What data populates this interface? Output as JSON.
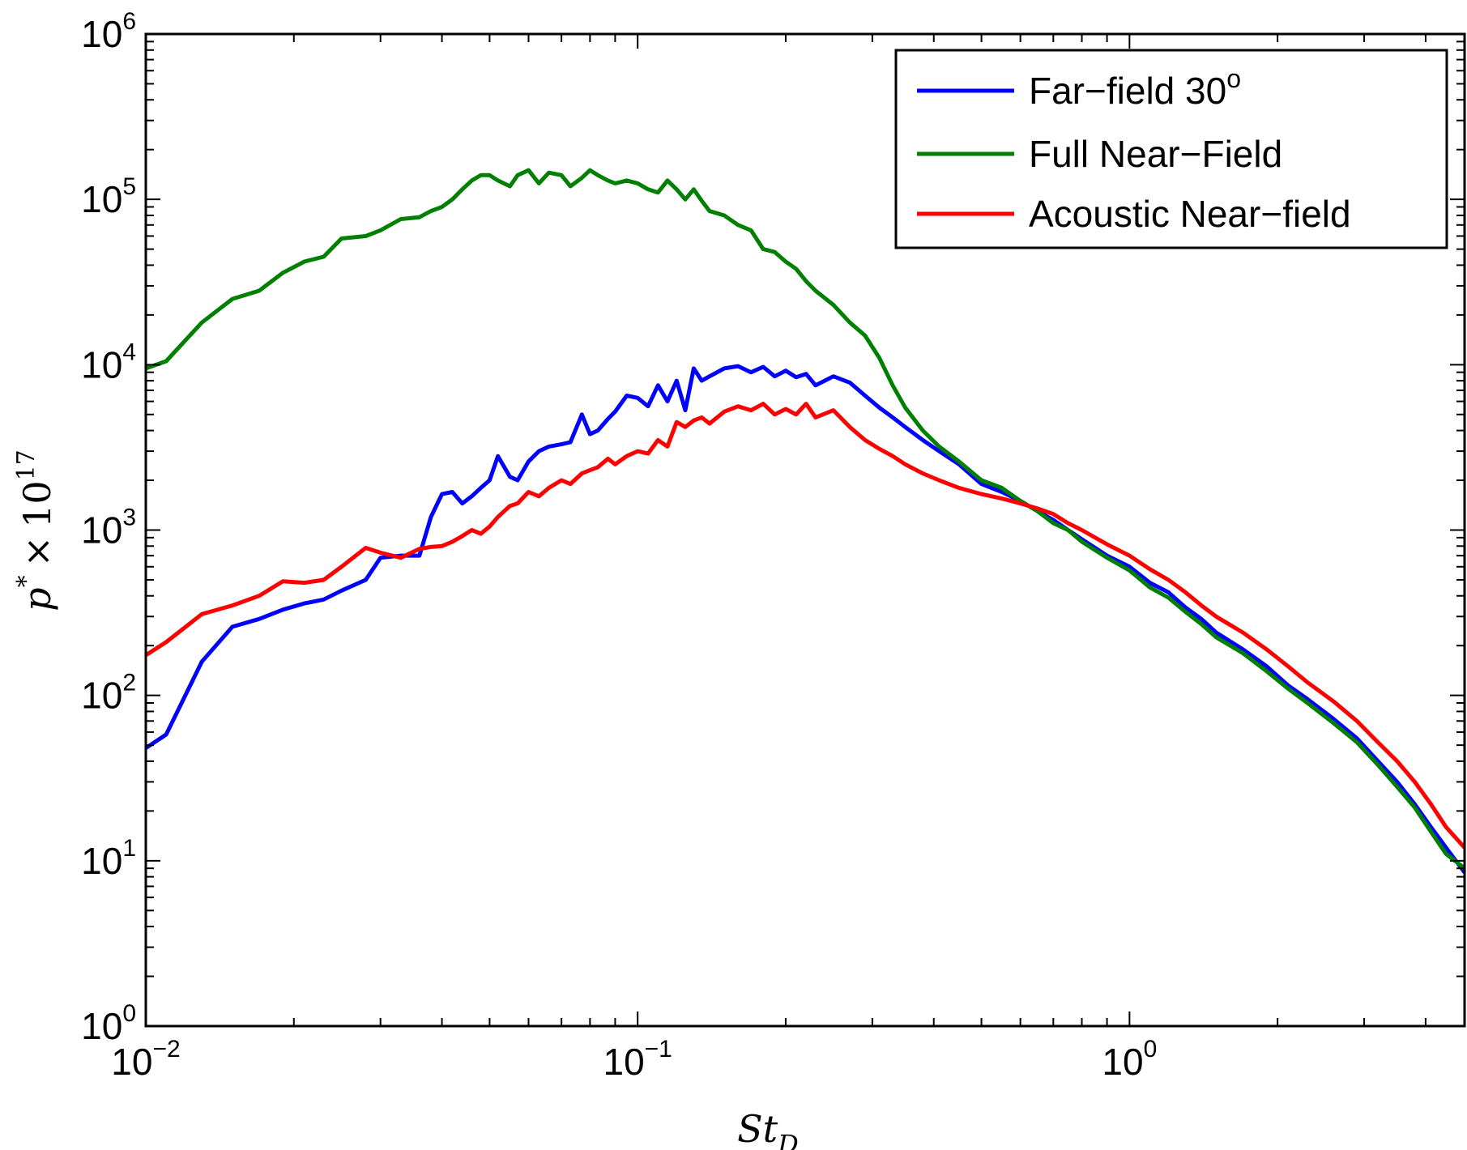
{
  "chart_data": {
    "type": "line",
    "title": "",
    "xscale": "log",
    "yscale": "log",
    "xlim": [
      0.01,
      4.8
    ],
    "ylim": [
      1,
      1000000
    ],
    "xticks": [
      {
        "base": "10",
        "exp": "−2",
        "value": 0.01
      },
      {
        "base": "10",
        "exp": "−1",
        "value": 0.1
      },
      {
        "base": "10",
        "exp": "0",
        "value": 1
      }
    ],
    "yticks": [
      {
        "base": "10",
        "exp": "0",
        "value": 1
      },
      {
        "base": "10",
        "exp": "1",
        "value": 10
      },
      {
        "base": "10",
        "exp": "2",
        "value": 100
      },
      {
        "base": "10",
        "exp": "3",
        "value": 1000
      },
      {
        "base": "10",
        "exp": "4",
        "value": 10000
      },
      {
        "base": "10",
        "exp": "5",
        "value": 100000
      },
      {
        "base": "10",
        "exp": "6",
        "value": 1000000
      }
    ],
    "xlabel": {
      "main": "St",
      "sub": "D"
    },
    "ylabel": {
      "main": "p",
      "sup1": "*",
      "times": "×",
      "base": "10",
      "sup2": "17"
    },
    "grid": false,
    "legend_position": "top-right",
    "series": [
      {
        "name": "Far−field 30",
        "name_sup": "o",
        "color": "#0000ff",
        "x": [
          0.01,
          0.011,
          0.013,
          0.015,
          0.017,
          0.019,
          0.021,
          0.023,
          0.025,
          0.028,
          0.03,
          0.033,
          0.036,
          0.038,
          0.04,
          0.042,
          0.044,
          0.046,
          0.048,
          0.05,
          0.052,
          0.055,
          0.057,
          0.06,
          0.063,
          0.066,
          0.07,
          0.073,
          0.077,
          0.08,
          0.083,
          0.087,
          0.09,
          0.095,
          0.1,
          0.105,
          0.11,
          0.115,
          0.12,
          0.125,
          0.13,
          0.135,
          0.14,
          0.15,
          0.16,
          0.17,
          0.18,
          0.19,
          0.2,
          0.21,
          0.22,
          0.23,
          0.25,
          0.27,
          0.29,
          0.31,
          0.33,
          0.35,
          0.38,
          0.41,
          0.45,
          0.5,
          0.55,
          0.6,
          0.65,
          0.7,
          0.75,
          0.8,
          0.9,
          1.0,
          1.1,
          1.2,
          1.3,
          1.4,
          1.5,
          1.7,
          1.9,
          2.1,
          2.3,
          2.6,
          2.9,
          3.2,
          3.5,
          3.8,
          4.1,
          4.4,
          4.8
        ],
        "values": [
          48,
          58,
          160,
          260,
          290,
          330,
          360,
          380,
          430,
          500,
          680,
          700,
          700,
          1200,
          1650,
          1700,
          1450,
          1600,
          1800,
          2000,
          2800,
          2100,
          2000,
          2600,
          3000,
          3200,
          3300,
          3400,
          5000,
          3800,
          4000,
          4700,
          5200,
          6500,
          6300,
          5600,
          7500,
          6000,
          8000,
          5300,
          9500,
          8000,
          8500,
          9500,
          9800,
          9000,
          9700,
          8500,
          9200,
          8400,
          8800,
          7500,
          8500,
          7800,
          6500,
          5500,
          4800,
          4200,
          3500,
          3000,
          2500,
          1900,
          1700,
          1500,
          1300,
          1150,
          1000,
          880,
          700,
          600,
          480,
          420,
          340,
          290,
          240,
          190,
          150,
          115,
          95,
          72,
          55,
          40,
          30,
          22,
          16,
          12,
          8.5
        ]
      },
      {
        "name": "Full Near−Field",
        "color": "#008000",
        "x": [
          0.01,
          0.011,
          0.013,
          0.015,
          0.017,
          0.019,
          0.021,
          0.023,
          0.025,
          0.028,
          0.03,
          0.033,
          0.036,
          0.038,
          0.04,
          0.042,
          0.044,
          0.046,
          0.048,
          0.05,
          0.052,
          0.055,
          0.057,
          0.06,
          0.063,
          0.066,
          0.07,
          0.073,
          0.077,
          0.08,
          0.083,
          0.087,
          0.09,
          0.095,
          0.1,
          0.105,
          0.11,
          0.115,
          0.12,
          0.125,
          0.13,
          0.135,
          0.14,
          0.15,
          0.16,
          0.17,
          0.18,
          0.19,
          0.2,
          0.21,
          0.22,
          0.23,
          0.25,
          0.27,
          0.29,
          0.31,
          0.33,
          0.35,
          0.38,
          0.41,
          0.45,
          0.5,
          0.55,
          0.6,
          0.65,
          0.7,
          0.75,
          0.8,
          0.9,
          1.0,
          1.1,
          1.2,
          1.3,
          1.4,
          1.5,
          1.7,
          1.9,
          2.1,
          2.3,
          2.6,
          2.9,
          3.2,
          3.5,
          3.8,
          4.1,
          4.4,
          4.8
        ],
        "values": [
          9500,
          10500,
          18000,
          25000,
          28000,
          36000,
          42000,
          45000,
          58000,
          60000,
          65000,
          76000,
          78000,
          85000,
          90000,
          100000,
          115000,
          130000,
          140000,
          140000,
          130000,
          120000,
          140000,
          150000,
          125000,
          145000,
          140000,
          120000,
          135000,
          150000,
          140000,
          130000,
          125000,
          130000,
          125000,
          115000,
          110000,
          130000,
          115000,
          100000,
          115000,
          98000,
          85000,
          80000,
          70000,
          65000,
          50000,
          48000,
          42000,
          38000,
          32000,
          28000,
          23000,
          18000,
          15000,
          11000,
          7500,
          5500,
          4000,
          3200,
          2600,
          2000,
          1800,
          1500,
          1300,
          1100,
          1000,
          850,
          680,
          570,
          450,
          390,
          320,
          270,
          225,
          180,
          140,
          110,
          90,
          68,
          52,
          38,
          28,
          21,
          15,
          11,
          9
        ]
      },
      {
        "name": "Acoustic Near−field",
        "color": "#ff0000",
        "x": [
          0.01,
          0.011,
          0.013,
          0.015,
          0.017,
          0.019,
          0.021,
          0.023,
          0.025,
          0.028,
          0.03,
          0.033,
          0.036,
          0.038,
          0.04,
          0.042,
          0.044,
          0.046,
          0.048,
          0.05,
          0.052,
          0.055,
          0.057,
          0.06,
          0.063,
          0.066,
          0.07,
          0.073,
          0.077,
          0.08,
          0.083,
          0.087,
          0.09,
          0.095,
          0.1,
          0.105,
          0.11,
          0.115,
          0.12,
          0.125,
          0.13,
          0.135,
          0.14,
          0.15,
          0.16,
          0.17,
          0.18,
          0.19,
          0.2,
          0.21,
          0.22,
          0.23,
          0.25,
          0.27,
          0.29,
          0.31,
          0.33,
          0.35,
          0.38,
          0.41,
          0.45,
          0.5,
          0.55,
          0.6,
          0.65,
          0.7,
          0.75,
          0.8,
          0.9,
          1.0,
          1.1,
          1.2,
          1.3,
          1.4,
          1.5,
          1.7,
          1.9,
          2.1,
          2.3,
          2.6,
          2.9,
          3.2,
          3.5,
          3.8,
          4.1,
          4.4,
          4.8
        ],
        "values": [
          175,
          210,
          310,
          350,
          400,
          490,
          480,
          500,
          600,
          780,
          730,
          680,
          770,
          790,
          800,
          850,
          920,
          1000,
          950,
          1050,
          1200,
          1400,
          1450,
          1700,
          1600,
          1800,
          2000,
          1900,
          2200,
          2300,
          2400,
          2700,
          2500,
          2800,
          3000,
          2900,
          3500,
          3200,
          4500,
          4200,
          4600,
          4800,
          4400,
          5200,
          5600,
          5300,
          5800,
          5000,
          5400,
          5000,
          5800,
          4800,
          5300,
          4200,
          3500,
          3100,
          2800,
          2500,
          2200,
          2000,
          1800,
          1650,
          1550,
          1450,
          1350,
          1250,
          1100,
          1000,
          820,
          700,
          580,
          500,
          420,
          350,
          300,
          240,
          190,
          150,
          120,
          92,
          70,
          52,
          40,
          30,
          22,
          16,
          12
        ]
      }
    ]
  }
}
